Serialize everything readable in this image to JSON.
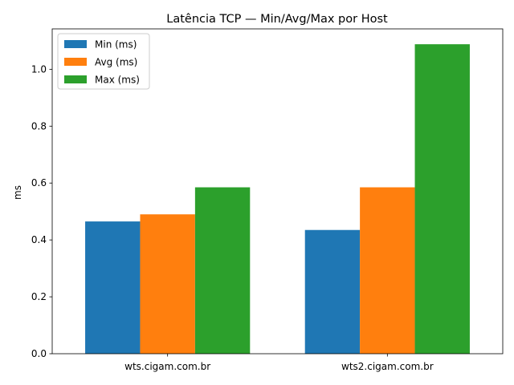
{
  "chart_data": {
    "type": "bar",
    "title": "Latência TCP — Min/Avg/Max por Host",
    "xlabel": "",
    "ylabel": "ms",
    "categories": [
      "wts.cigam.com.br",
      "wts2.cigam.com.br"
    ],
    "series": [
      {
        "name": "Min (ms)",
        "values": [
          0.465,
          0.435
        ],
        "color": "#1f77b4"
      },
      {
        "name": "Avg (ms)",
        "values": [
          0.49,
          0.585
        ],
        "color": "#ff7f0e"
      },
      {
        "name": "Max (ms)",
        "values": [
          0.585,
          1.088
        ],
        "color": "#2ca02c"
      }
    ],
    "ylim": [
      0,
      1.142
    ],
    "yticks": [
      "0.0",
      "0.2",
      "0.4",
      "0.6",
      "0.8",
      "1.0"
    ],
    "grid": false,
    "legend_position": "top-left"
  }
}
